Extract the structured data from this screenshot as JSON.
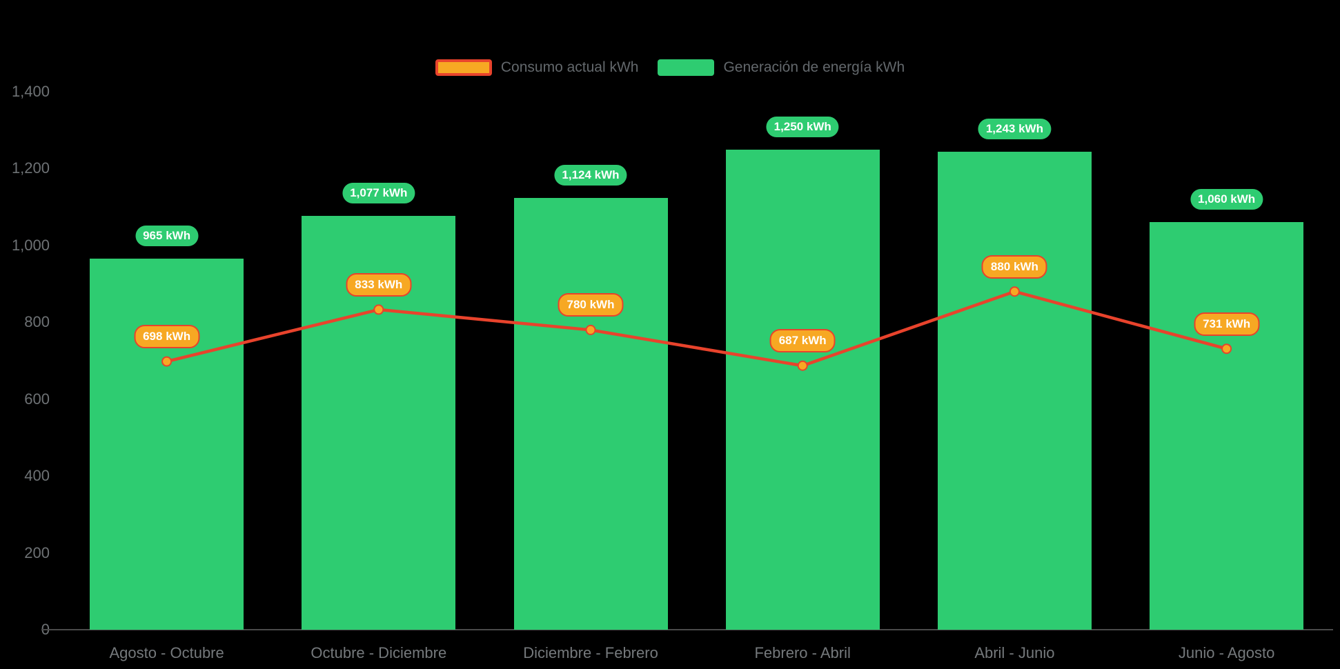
{
  "chart_data": {
    "type": "bar+line",
    "title": "",
    "categories": [
      "Agosto - Octubre",
      "Octubre - Diciembre",
      "Diciembre - Febrero",
      "Febrero - Abril",
      "Abril - Junio",
      "Junio - Agosto"
    ],
    "series": [
      {
        "name": "Consumo actual kWh",
        "type": "line",
        "color": "#e8432c",
        "marker_color": "#f7a823",
        "label_bg": "#f7a823",
        "label_border": "#e8432c",
        "label_text_color": "#ffffff",
        "values": [
          698,
          833,
          780,
          687,
          880,
          731
        ],
        "labels": [
          "698 kWh",
          "833 kWh",
          "780 kWh",
          "687 kWh",
          "880 kWh",
          "731 kWh"
        ]
      },
      {
        "name": "Generación de energía kWh",
        "type": "bar",
        "color": "#2ecc71",
        "label_bg": "#2ecc71",
        "label_text_color": "#ffffff",
        "values": [
          965,
          1077,
          1124,
          1250,
          1243,
          1060
        ],
        "labels": [
          "965 kWh",
          "1,077 kWh",
          "1,124 kWh",
          "1,250 kWh",
          "1,243 kWh",
          "1,060 kWh"
        ]
      }
    ],
    "yticks": [
      0,
      200,
      400,
      600,
      800,
      1000,
      1200,
      1400
    ],
    "ytick_labels": [
      "0",
      "200",
      "400",
      "600",
      "800",
      "1,000",
      "1,200",
      "1,400"
    ],
    "ylim": [
      0,
      1400
    ],
    "grid": false,
    "legend_position": "top",
    "axis": {
      "tick_color": "#6e7275",
      "category_color": "#75797c",
      "line_color": "#4a4a4a"
    },
    "background": "#000000"
  }
}
